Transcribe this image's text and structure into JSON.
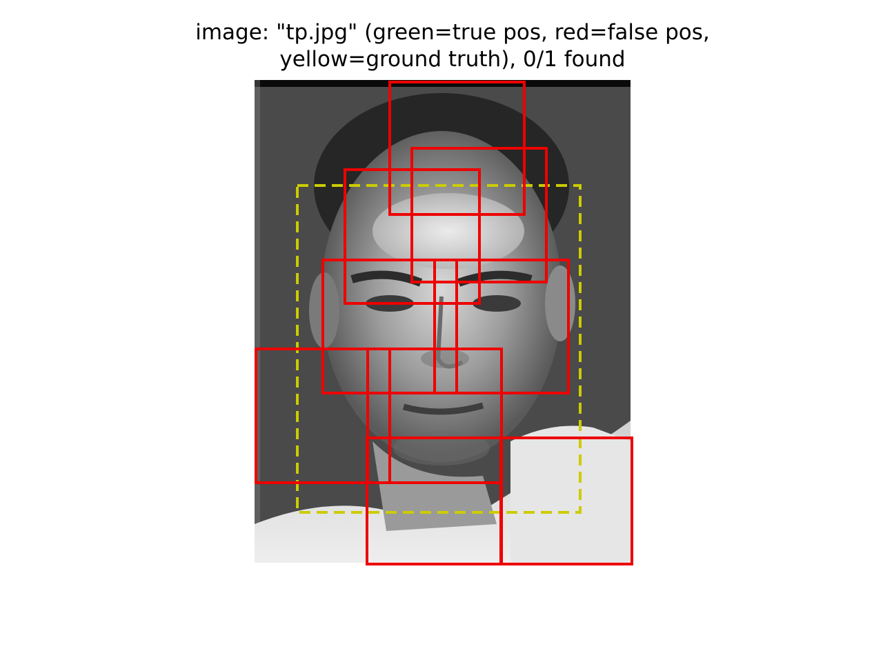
{
  "title": {
    "line1": "image: \"tp.jpg\" (green=true pos, red=false pos,",
    "line2": "yellow=ground truth), 0/1 found"
  },
  "colors": {
    "false_positive": "#ee0000",
    "ground_truth": "#cccc00",
    "true_positive": "#00cc00"
  },
  "detections": {
    "false_positive_count": 9,
    "ground_truth_count": 1,
    "found": 0
  }
}
